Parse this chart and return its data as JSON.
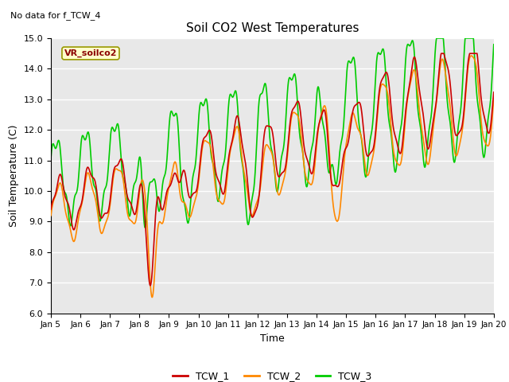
{
  "title": "Soil CO2 West Temperatures",
  "no_data_text": "No data for f_TCW_4",
  "vr_label": "VR_soilco2",
  "xlabel": "Time",
  "ylabel": "Soil Temperature (C)",
  "ylim": [
    6.0,
    15.0
  ],
  "yticks": [
    6.0,
    7.0,
    8.0,
    9.0,
    10.0,
    11.0,
    12.0,
    13.0,
    14.0,
    15.0
  ],
  "xtick_labels": [
    "Jan 5",
    "Jan 6",
    "Jan 7",
    "Jan 8",
    "Jan 9",
    "Jan 10",
    "Jan 11",
    "Jan 12",
    "Jan 13",
    "Jan 14",
    "Jan 15",
    "Jan 16",
    "Jan 17",
    "Jan 18",
    "Jan 19",
    "Jan 20"
  ],
  "colors": {
    "TCW_1": "#cc0000",
    "TCW_2": "#ff8800",
    "TCW_3": "#00cc00"
  },
  "background_color": "#e8e8e8",
  "grid_color": "#ffffff",
  "line_width": 1.2,
  "figsize": [
    6.4,
    4.8
  ],
  "dpi": 100
}
